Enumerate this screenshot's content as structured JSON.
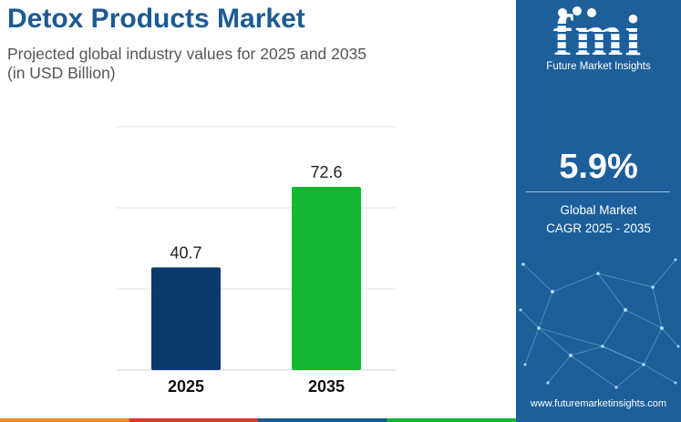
{
  "header": {
    "title": "Detox Products Market",
    "subtitle_line1": "Projected global industry values for 2025 and 2035",
    "subtitle_line2": "(in USD Billion)"
  },
  "chart_data": {
    "type": "bar",
    "categories": [
      "2025",
      "2035"
    ],
    "values": [
      40.7,
      72.6
    ],
    "value_labels": [
      "40.7",
      "72.6"
    ],
    "colors": [
      "#0b3a6e",
      "#15b634"
    ],
    "ylim": [
      0,
      95
    ],
    "grid": true,
    "xlabel": "",
    "ylabel": ""
  },
  "sidebar": {
    "logo_text": "fmi",
    "brand": "Future Market Insights",
    "cagr_value": "5.9%",
    "cagr_label_line1": "Global Market",
    "cagr_label_line2": "CAGR 2025 - 2035",
    "website": "www.futuremarketinsights.com",
    "background": "#1c5f9b"
  },
  "footer": {
    "colors": [
      "#f08c2b",
      "#e3342f",
      "#1d5a92",
      "#15b634"
    ]
  }
}
